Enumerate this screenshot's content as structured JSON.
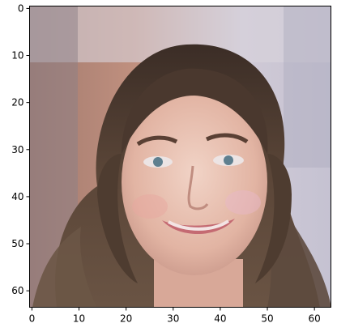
{
  "figure": {
    "description_free": true,
    "image_content": "generated-face-thumbnail",
    "background_color": "#ffffff",
    "palette": {
      "hair": "#5a4638",
      "hair_dark": "#3a2c24",
      "skin": "#e8c0b0",
      "skin_shadow": "#c99888",
      "background_left": "#b98a7c",
      "background_right": "#c8c8d6",
      "background_top": "#d8d4dc",
      "lips": "#c46a72",
      "eyes": "#5f7f8f"
    }
  },
  "chart_data": {
    "type": "heatmap",
    "xlim": [
      -0.5,
      63.5
    ],
    "ylim": [
      63.5,
      -0.5
    ],
    "xticks": [
      "0",
      "10",
      "20",
      "30",
      "40",
      "50",
      "60"
    ],
    "yticks": [
      "0",
      "10",
      "20",
      "30",
      "40",
      "50",
      "60"
    ],
    "xtick_values": [
      0,
      10,
      20,
      30,
      40,
      50,
      60
    ],
    "ytick_values": [
      0,
      10,
      20,
      30,
      40,
      50,
      60
    ],
    "title": "",
    "xlabel": "",
    "ylabel": "",
    "grid": false
  }
}
